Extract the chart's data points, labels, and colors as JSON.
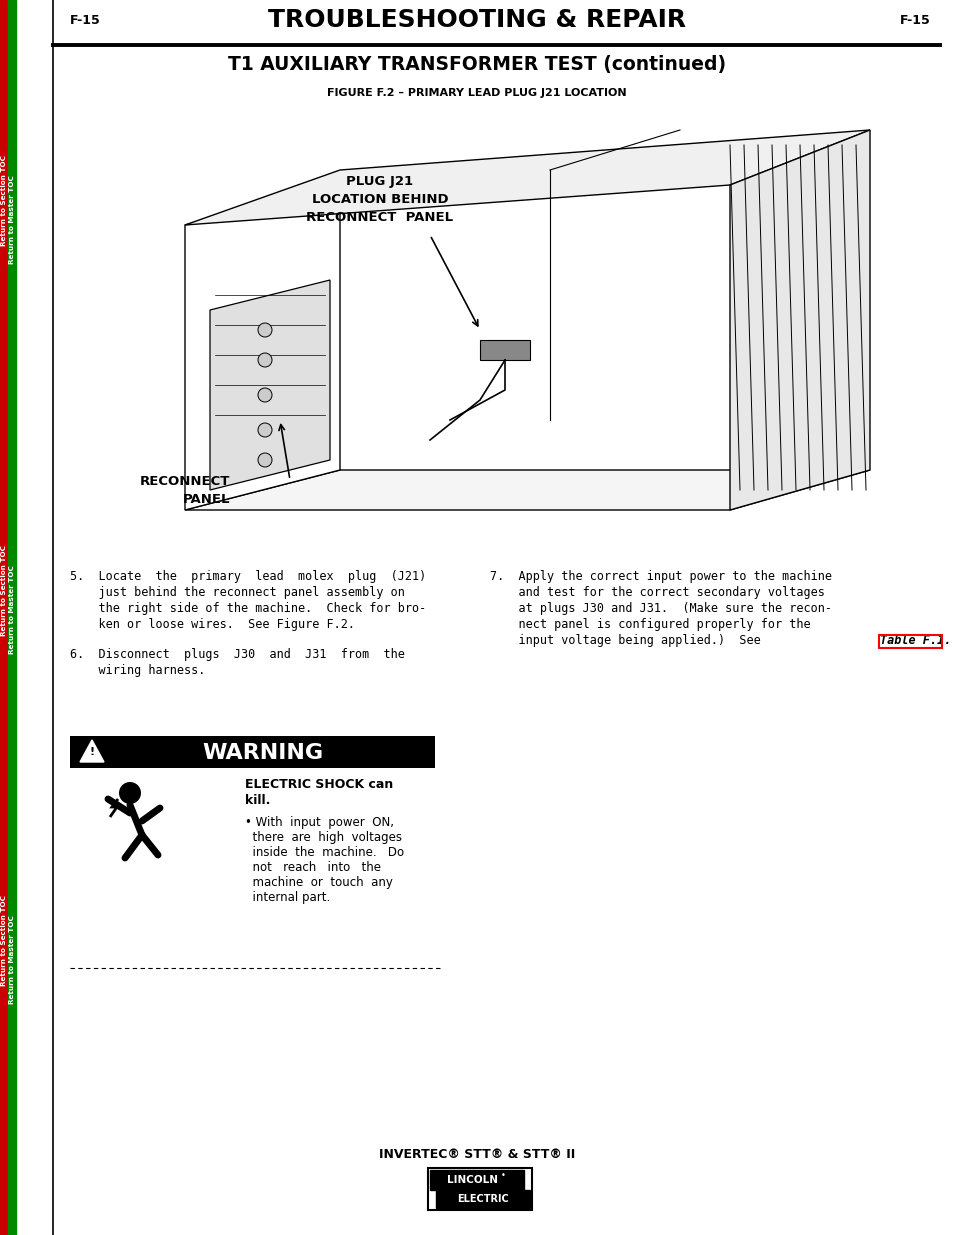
{
  "page_label": "F-15",
  "header_title": "TROUBLESHOOTING & REPAIR",
  "section_title": "T1 AUXILIARY TRANSFORMER TEST (continued)",
  "figure_caption": "FIGURE F.2 – PRIMARY LEAD PLUG J21 LOCATION",
  "label_plug_line1": "PLUG J21",
  "label_plug_line2": "LOCATION BEHIND",
  "label_plug_line3": "RECONNECT  PANEL",
  "label_reconnect_line1": "RECONNECT",
  "label_reconnect_line2": "PANEL",
  "step5_line1": "5.  Locate  the  primary  lead  molex  plug  (J21)",
  "step5_line2": "    just behind the reconnect panel assembly on",
  "step5_line3": "    the right side of the machine.  Check for bro-",
  "step5_line4": "    ken or loose wires.  See Figure F.2.",
  "step6_line1": "6.  Disconnect  plugs  J30  and  J31  from  the",
  "step6_line2": "    wiring harness.",
  "step7_line1": "7.  Apply the correct input power to the machine",
  "step7_line2": "    and test for the correct secondary voltages",
  "step7_line3": "    at plugs J30 and J31.  (Make sure the recon-",
  "step7_line4": "    nect panel is configured properly for the",
  "step7_line5": "    input voltage being applied.)  See ",
  "step7_link": "Table F.1.",
  "warning_title": "WARNING",
  "warning_shock": "ELECTRIC SHOCK can",
  "warning_kill": "kill.",
  "warning_b1": "• With  input  power  ON,",
  "warning_b2": "  there  are  high  voltages",
  "warning_b3": "  inside  the  machine.   Do",
  "warning_b4": "  not   reach   into   the",
  "warning_b5": "  machine  or  touch  any",
  "warning_b6": "  internal part.",
  "footer_text": "INVERTEC® STT® & STT® II",
  "left_bar_color": "#cc0000",
  "green_bar_color": "#008800",
  "bg_color": "#ffffff"
}
